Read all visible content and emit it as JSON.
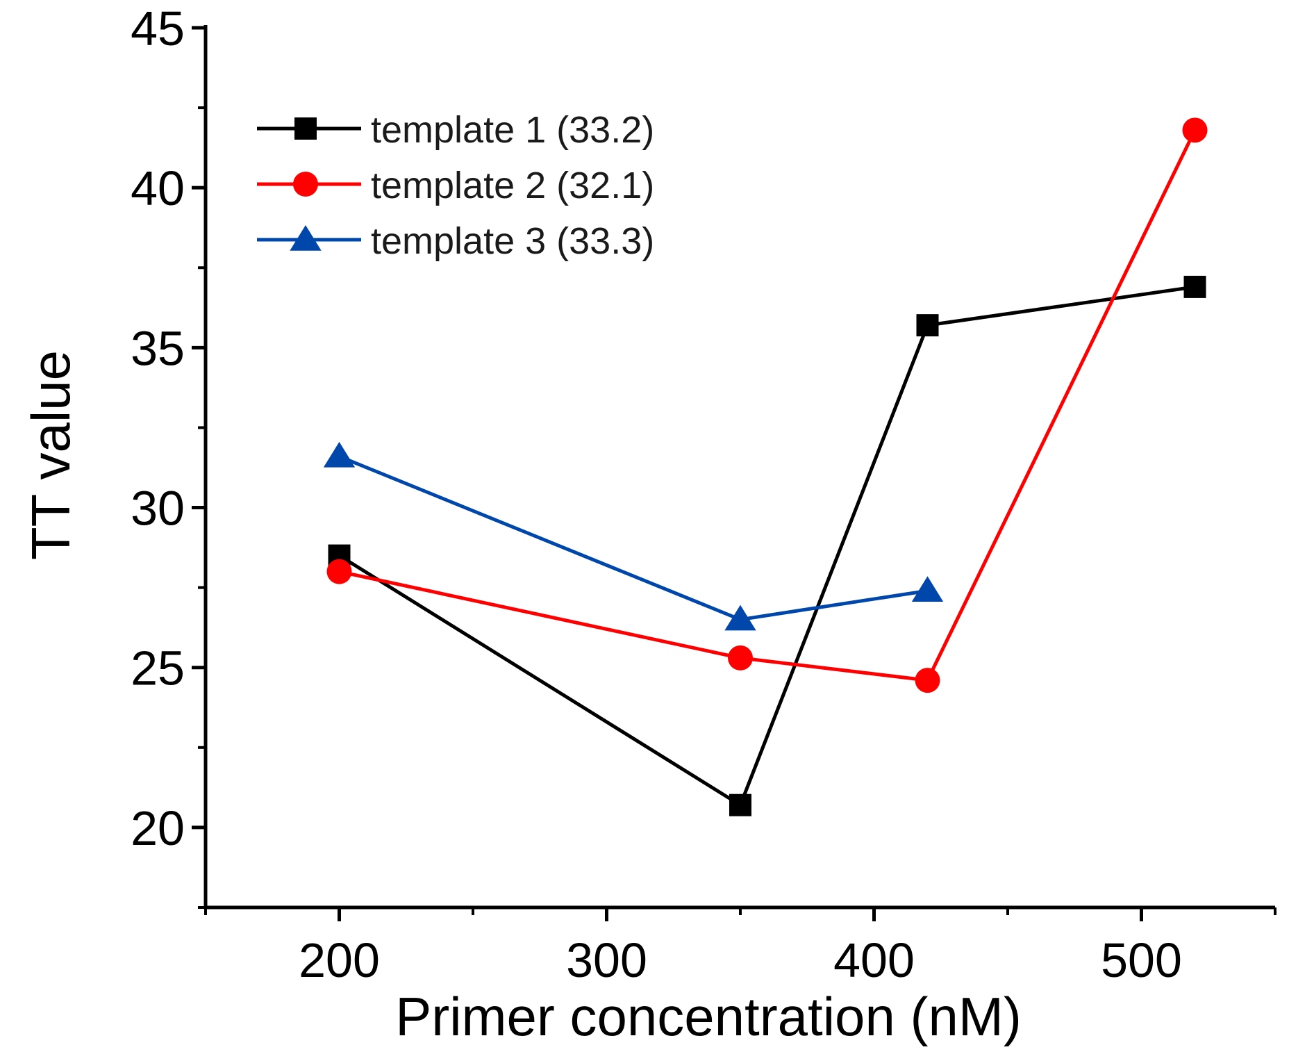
{
  "chart_data": {
    "type": "line",
    "title": "",
    "xlabel": "Primer concentration (nM)",
    "ylabel": "TT value",
    "xlim": [
      150,
      550
    ],
    "ylim": [
      17.5,
      45
    ],
    "xticks": [
      200,
      300,
      400,
      500
    ],
    "xtick_labels": [
      "200",
      "300",
      "400",
      "500"
    ],
    "x_minor_ticks": [
      150,
      250,
      350,
      450,
      550
    ],
    "yticks": [
      20,
      25,
      30,
      35,
      40,
      45
    ],
    "ytick_labels": [
      "20",
      "25",
      "30",
      "35",
      "40",
      "45"
    ],
    "y_minor_ticks": [
      17.5,
      22.5,
      27.5,
      32.5,
      37.5,
      42.5
    ],
    "legend_position": "top-left",
    "grid": false,
    "series": [
      {
        "name": "template 1 (33.2)",
        "color": "#000000",
        "marker": "square",
        "x": [
          200,
          350,
          420,
          520
        ],
        "y": [
          28.5,
          20.7,
          35.7,
          36.9
        ]
      },
      {
        "name": "template 2 (32.1)",
        "color": "#ff0000",
        "marker": "circle",
        "x": [
          200,
          350,
          420,
          520
        ],
        "y": [
          28.0,
          25.3,
          24.6,
          41.8
        ]
      },
      {
        "name": "template 3 (33.3)",
        "color": "#0047ab",
        "marker": "triangle",
        "x": [
          200,
          350,
          420
        ],
        "y": [
          31.6,
          26.5,
          27.4
        ]
      }
    ]
  }
}
